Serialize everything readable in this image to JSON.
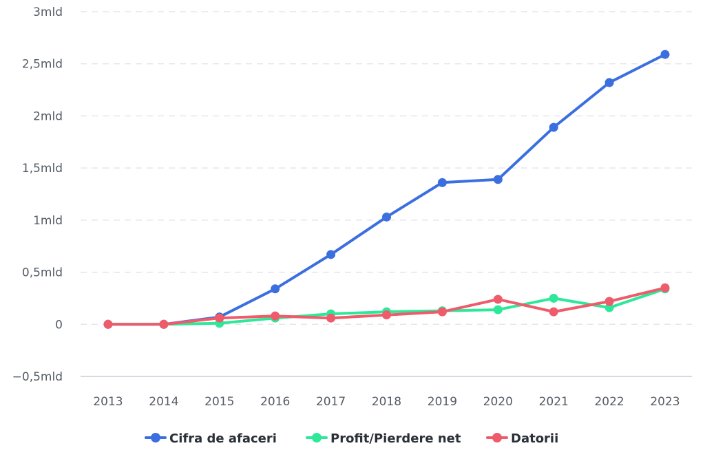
{
  "chart_data": {
    "type": "line",
    "title": "",
    "xlabel": "",
    "ylabel": "",
    "categories": [
      "2013",
      "2014",
      "2015",
      "2016",
      "2017",
      "2018",
      "2019",
      "2020",
      "2021",
      "2022",
      "2023"
    ],
    "ylim": [
      -0.5,
      3
    ],
    "yticks": [
      -0.5,
      0,
      0.5,
      1,
      1.5,
      2,
      2.5,
      3
    ],
    "ytick_labels": [
      "−0,5mld",
      "0",
      "0,5mld",
      "1mld",
      "1,5mld",
      "2mld",
      "2,5mld",
      "3mld"
    ],
    "grid": true,
    "legend_position": "bottom-center",
    "series": [
      {
        "name": "Cifra de afaceri",
        "color": "#3b6fe0",
        "values": [
          0.0,
          0.0,
          0.07,
          0.34,
          0.67,
          1.03,
          1.36,
          1.39,
          1.89,
          2.32,
          2.59
        ]
      },
      {
        "name": "Profit/Pierdere net",
        "color": "#2ee89a",
        "values": [
          0.0,
          0.0,
          0.01,
          0.06,
          0.1,
          0.12,
          0.13,
          0.14,
          0.25,
          0.16,
          0.34
        ]
      },
      {
        "name": "Datorii",
        "color": "#ef5b6a",
        "values": [
          0.0,
          0.0,
          0.06,
          0.08,
          0.06,
          0.09,
          0.12,
          0.24,
          0.12,
          0.22,
          0.35
        ]
      }
    ]
  }
}
